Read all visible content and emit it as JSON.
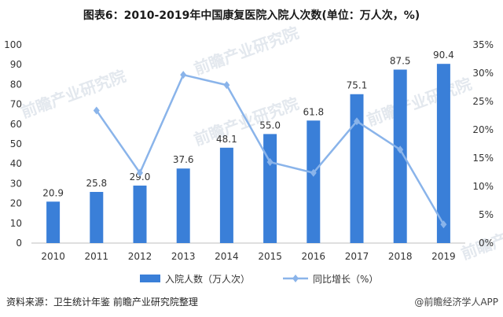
{
  "chart_data": {
    "type": "bar",
    "title": "图表6：2010-2019年中国康复医院入院人次数(单位：万人次，%)",
    "categories": [
      "2010",
      "2011",
      "2012",
      "2013",
      "2014",
      "2015",
      "2016",
      "2017",
      "2018",
      "2019"
    ],
    "series": [
      {
        "name": "入院人数（万人次）",
        "type": "bar",
        "axis": "left",
        "color": "#3a7fd8",
        "values": [
          20.9,
          25.8,
          29.0,
          37.6,
          48.1,
          55.0,
          61.8,
          75.1,
          87.5,
          90.4
        ],
        "labels": [
          "20.9",
          "25.8",
          "29.0",
          "37.6",
          "48.1",
          "55.0",
          "61.8",
          "75.1",
          "87.5",
          "90.4"
        ]
      },
      {
        "name": "同比增长（%）",
        "type": "line",
        "axis": "right",
        "color": "#8ab4ea",
        "values": [
          null,
          23.4,
          12.4,
          29.7,
          27.9,
          14.3,
          12.4,
          21.5,
          16.5,
          3.3
        ]
      }
    ],
    "ylim": [
      0,
      100
    ],
    "yticks": [
      "0",
      "10",
      "20",
      "30",
      "40",
      "50",
      "60",
      "70",
      "80",
      "90",
      "100"
    ],
    "y2lim": [
      0,
      35
    ],
    "y2ticks": [
      "0%",
      "5%",
      "10%",
      "15%",
      "20%",
      "25%",
      "30%",
      "35%"
    ],
    "legend_position": "bottom",
    "grid": false
  },
  "footer": {
    "source": "资料来源：卫生统计年鉴 前瞻产业研究院整理",
    "attribution": "@前瞻经济学人APP"
  },
  "watermark": {
    "text": "前瞻产业研究院"
  }
}
